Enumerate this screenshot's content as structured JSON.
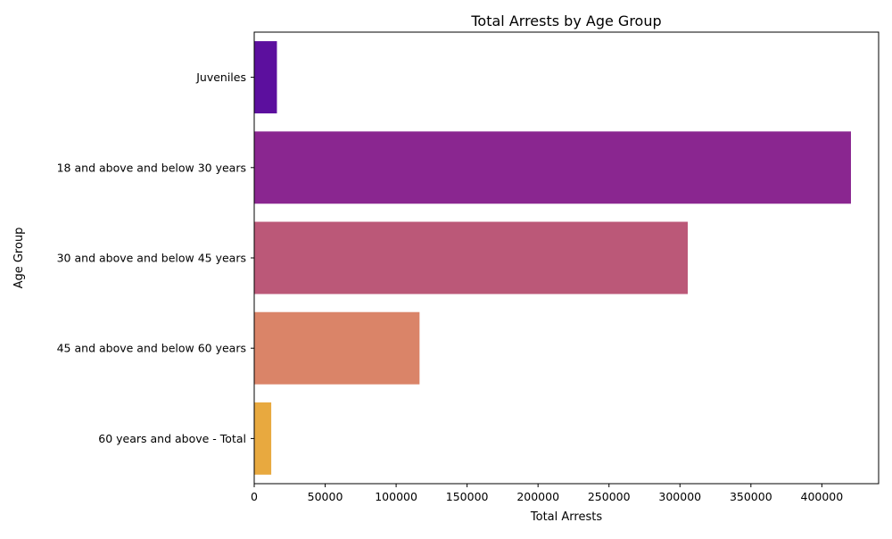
{
  "chart_data": {
    "type": "bar",
    "orientation": "horizontal",
    "title": "Total Arrests by Age Group",
    "xlabel": "Total Arrests",
    "ylabel": "Age Group",
    "xlim": [
      0,
      440000
    ],
    "grid": false,
    "legend": "none",
    "x_ticks": [
      0,
      50000,
      100000,
      150000,
      200000,
      250000,
      300000,
      350000,
      400000
    ],
    "categories": [
      "Juveniles",
      "18 and above and below 30  years",
      "30 and above and below 45  years",
      "45 and above and below 60  years",
      "60 years and above - Total"
    ],
    "values": [
      16000,
      420500,
      305500,
      116500,
      12000
    ],
    "colors": [
      "#5c0f9e",
      "#8a2690",
      "#bb5878",
      "#da8468",
      "#e8a93f"
    ]
  }
}
